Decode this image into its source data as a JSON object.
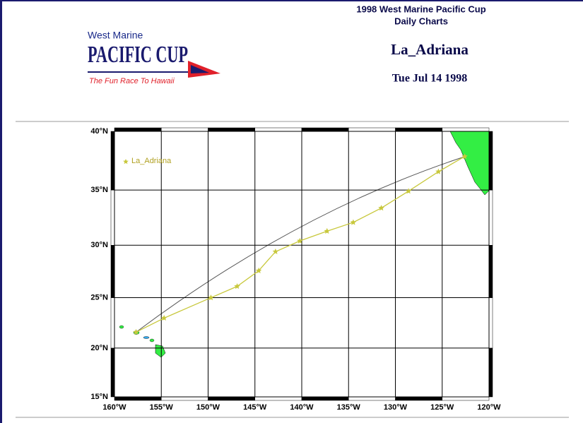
{
  "header": {
    "title": "1998 West Marine Pacific Cup",
    "subtitle": "Daily Charts",
    "boat": "La_Adriana",
    "date": "Tue Jul 14 1998"
  },
  "logo": {
    "brand": "West Marine",
    "name": "PACIFIC CUP",
    "tagline": "The Fun Race To Hawaii"
  },
  "chart_data": {
    "type": "line",
    "projection": "mercator",
    "x": [
      -122.6,
      -125.4,
      -128.6,
      -131.5,
      -134.5,
      -137.3,
      -140.2,
      -142.8,
      -144.6,
      -146.9,
      -149.7,
      -154.7,
      -157.7
    ],
    "series": [
      {
        "name": "La_Adriana",
        "color": "#c8c83c",
        "values": [
          37.9,
          36.6,
          34.9,
          33.4,
          32.1,
          31.3,
          30.4,
          29.4,
          27.6,
          26.1,
          25.0,
          23.0,
          21.6
        ]
      }
    ],
    "xlim": [
      -160,
      -120
    ],
    "ylim": [
      15,
      40
    ],
    "xticks": [
      {
        "value": -160,
        "label": "160°W"
      },
      {
        "value": -155,
        "label": "155°W"
      },
      {
        "value": -150,
        "label": "150°W"
      },
      {
        "value": -145,
        "label": "145°W"
      },
      {
        "value": -140,
        "label": "140°W"
      },
      {
        "value": -135,
        "label": "135°W"
      },
      {
        "value": -130,
        "label": "130°W"
      },
      {
        "value": -125,
        "label": "125°W"
      },
      {
        "value": -120,
        "label": "120°W"
      }
    ],
    "yticks": [
      {
        "value": 15,
        "label": "15°N"
      },
      {
        "value": 20,
        "label": "20°N"
      },
      {
        "value": 25,
        "label": "25°N"
      },
      {
        "value": 30,
        "label": "30°N"
      },
      {
        "value": 35,
        "label": "35°N"
      },
      {
        "value": 40,
        "label": "40°N"
      }
    ],
    "grid": true,
    "legend": "upper left"
  }
}
